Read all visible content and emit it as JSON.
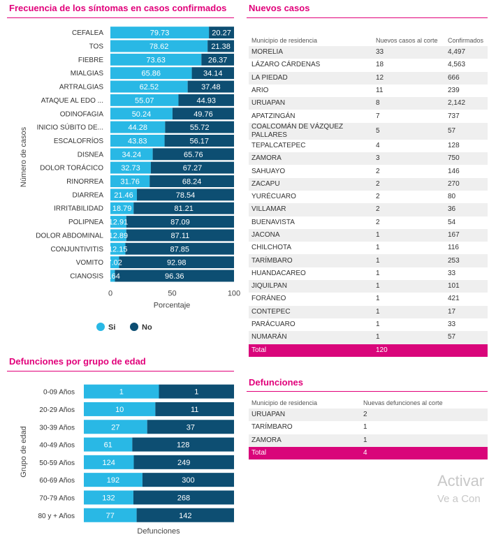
{
  "sections": {
    "symptoms_title": "Frecuencia de los síntomas en casos confirmados",
    "new_cases_title": "Nuevos casos",
    "age_title": "Defunciones por grupo de edad",
    "deaths_title": "Defunciones"
  },
  "colors": {
    "si": "#29b8e5",
    "no": "#0d4e72",
    "accent": "#e1007a",
    "total_row": "#d9057a"
  },
  "chart_data": [
    {
      "type": "bar",
      "orientation": "horizontal",
      "stacked": true,
      "title": "Frecuencia de los síntomas en casos confirmados",
      "xlabel": "Porcentaje",
      "ylabel": "Número de casos",
      "xlim": [
        0,
        100
      ],
      "xticks": [
        "0",
        "50",
        "100"
      ],
      "legend": {
        "position": "bottom",
        "entries": [
          "Si",
          "No"
        ]
      },
      "categories": [
        "CEFALEA",
        "TOS",
        "FIEBRE",
        "MIALGIAS",
        "ARTRALGIAS",
        "ATAQUE AL EDO ...",
        "ODINOFAGIA",
        "INICIO SÚBITO DE...",
        "ESCALOFRÍOS",
        "DISNEA",
        "DOLOR TORÁCICO",
        "RINORREA",
        "DIARREA",
        "IRRITABILIDAD",
        "POLIPNEA",
        "DOLOR ABDOMINAL",
        "CONJUNTIVITIS",
        "VOMITO",
        "CIANOSIS"
      ],
      "series": [
        {
          "name": "Si",
          "values": [
            79.73,
            78.62,
            73.63,
            65.86,
            62.52,
            55.07,
            50.24,
            44.28,
            43.83,
            34.24,
            32.73,
            31.76,
            21.46,
            18.79,
            12.91,
            12.89,
            12.15,
            7.02,
            3.64
          ]
        },
        {
          "name": "No",
          "values": [
            20.27,
            21.38,
            26.37,
            34.14,
            37.48,
            44.93,
            49.76,
            55.72,
            56.17,
            65.76,
            67.27,
            68.24,
            78.54,
            81.21,
            87.09,
            87.11,
            87.85,
            92.98,
            96.36
          ]
        }
      ]
    },
    {
      "type": "bar",
      "orientation": "horizontal",
      "stacked": true,
      "title": "Defunciones por grupo de edad",
      "xlabel": "Defunciones",
      "ylabel": "Grupo de edad",
      "categories": [
        "0-09 Años",
        "20-29 Años",
        "30-39 Años",
        "40-49 Años",
        "50-59 Años",
        "60-69 Años",
        "70-79 Años",
        "80 y + Años"
      ],
      "series": [
        {
          "name": "Si",
          "values": [
            1,
            10,
            27,
            61,
            124,
            192,
            132,
            77
          ]
        },
        {
          "name": "No",
          "values": [
            1,
            11,
            37,
            128,
            249,
            300,
            268,
            142
          ]
        }
      ]
    }
  ],
  "new_cases": {
    "headers": [
      "Municipio de residencia",
      "Nuevos casos al corte",
      "Confirmados"
    ],
    "rows": [
      [
        "MORELIA",
        "33",
        "4,497"
      ],
      [
        "LÁZARO CÁRDENAS",
        "18",
        "4,563"
      ],
      [
        "LA PIEDAD",
        "12",
        "666"
      ],
      [
        "ARIO",
        "11",
        "239"
      ],
      [
        "URUAPAN",
        "8",
        "2,142"
      ],
      [
        "APATZINGÁN",
        "7",
        "737"
      ],
      [
        "COALCOMÁN DE VÁZQUEZ PALLARES",
        "5",
        "57"
      ],
      [
        "TEPALCATEPEC",
        "4",
        "128"
      ],
      [
        "ZAMORA",
        "3",
        "750"
      ],
      [
        "SAHUAYO",
        "2",
        "146"
      ],
      [
        "ZACAPU",
        "2",
        "270"
      ],
      [
        "YURÉCUARO",
        "2",
        "80"
      ],
      [
        "VILLAMAR",
        "2",
        "36"
      ],
      [
        "BUENAVISTA",
        "2",
        "54"
      ],
      [
        "JACONA",
        "1",
        "167"
      ],
      [
        "CHILCHOTA",
        "1",
        "116"
      ],
      [
        "TARÍMBARO",
        "1",
        "253"
      ],
      [
        "HUANDACAREO",
        "1",
        "33"
      ],
      [
        "JIQUILPAN",
        "1",
        "101"
      ],
      [
        "FORÁNEO",
        "1",
        "421"
      ],
      [
        "CONTEPEC",
        "1",
        "17"
      ],
      [
        "PARÁCUARO",
        "1",
        "33"
      ],
      [
        "NUMARÁN",
        "1",
        "57"
      ]
    ],
    "total": [
      "Total",
      "120",
      ""
    ]
  },
  "deaths": {
    "headers": [
      "Municipio de residencia",
      "Nuevas defunciones al corte"
    ],
    "rows": [
      [
        "URUAPAN",
        "2"
      ],
      [
        "TARÍMBARO",
        "1"
      ],
      [
        "ZAMORA",
        "1"
      ]
    ],
    "total": [
      "Total",
      "4"
    ]
  },
  "watermark": {
    "line1": "Activar",
    "line2": "Ve a Con"
  }
}
